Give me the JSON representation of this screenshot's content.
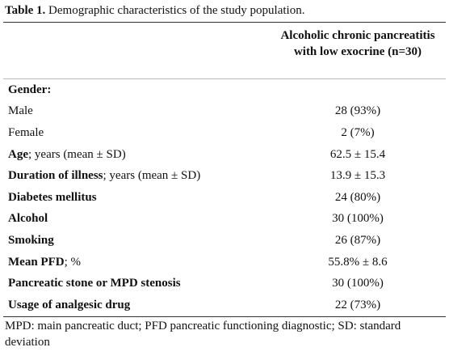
{
  "caption": {
    "label": "Table 1.",
    "text": "Demographic characteristics of the study population."
  },
  "table": {
    "header": "Alcoholic chronic pancreatitis with low exocrine (n=30)",
    "rows": [
      {
        "label": "Gender:",
        "bold": true
      },
      {
        "label": "Male",
        "bold": false,
        "value": "28 (93%)"
      },
      {
        "label": "Female",
        "bold": false,
        "value": "2 (7%)"
      },
      {
        "label": "Age",
        "suffix": "; years (mean ± SD)",
        "bold": true,
        "value": "62.5 ± 15.4"
      },
      {
        "label": "Duration of illness",
        "suffix": "; years (mean ± SD)",
        "bold": true,
        "value": "13.9 ± 15.3"
      },
      {
        "label": "Diabetes mellitus",
        "bold": true,
        "value": "24 (80%)"
      },
      {
        "label": "Alcohol",
        "bold": true,
        "value": "30 (100%)"
      },
      {
        "label": "Smoking",
        "bold": true,
        "value": "26 (87%)"
      },
      {
        "label": "Mean PFD",
        "suffix": "; %",
        "bold": true,
        "value": "55.8% ± 8.6"
      },
      {
        "label": "Pancreatic stone or MPD stenosis",
        "bold": true,
        "value": "30 (100%)"
      },
      {
        "label": "Usage of analgesic drug",
        "bold": true,
        "value": "22 (73%)"
      }
    ]
  },
  "footnote": "MPD: main pancreatic duct; PFD pancreatic functioning diagnostic; SD: standard deviation"
}
